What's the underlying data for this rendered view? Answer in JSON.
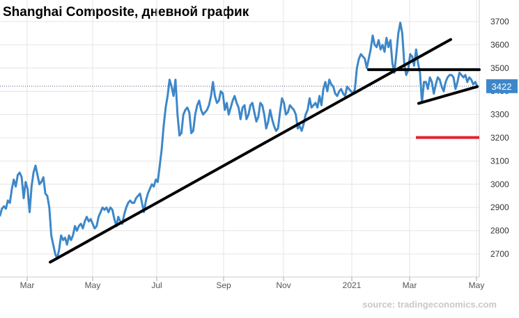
{
  "chart_data": {
    "type": "line",
    "title": "Shanghai Composite, дневной график",
    "source": "source: tradingeconomics.com",
    "ylim": [
      2600,
      3760
    ],
    "y_ticks": [
      2700,
      2800,
      2900,
      3000,
      3100,
      3200,
      3300,
      3400,
      3500,
      3600,
      3700
    ],
    "x_tick_labels": [
      "Mar",
      "May",
      "Jul",
      "Sep",
      "Nov",
      "2021",
      "Mar",
      "May"
    ],
    "last_value_label": "3422",
    "grid": true,
    "colors": {
      "series": "#3d87c9",
      "trendline": "#000000",
      "target_line": "#e3222b",
      "last_value_box": "#3d87c9"
    },
    "series": [
      {
        "values": [
          2865,
          2895,
          2905,
          2895,
          2930,
          2920,
          2980,
          3020,
          2990,
          3040,
          3050,
          3030,
          2940,
          3010,
          2980,
          2880,
          2990,
          3050,
          3080,
          3040,
          3000,
          3010,
          3030,
          2960,
          2950,
          2900,
          2780,
          2740,
          2700,
          2680,
          2720,
          2780,
          2760,
          2770,
          2740,
          2780,
          2760,
          2780,
          2820,
          2800,
          2820,
          2830,
          2810,
          2840,
          2860,
          2840,
          2850,
          2830,
          2810,
          2820,
          2860,
          2880,
          2900,
          2890,
          2900,
          2880,
          2900,
          2890,
          2850,
          2820,
          2860,
          2840,
          2830,
          2870,
          2900,
          2920,
          2930,
          2920,
          2920,
          2940,
          2950,
          2960,
          2920,
          2880,
          2930,
          2960,
          2980,
          3000,
          2990,
          3020,
          3010,
          3080,
          3150,
          3250,
          3330,
          3380,
          3450,
          3420,
          3380,
          3450,
          3300,
          3210,
          3220,
          3300,
          3320,
          3330,
          3310,
          3220,
          3230,
          3300,
          3340,
          3360,
          3320,
          3300,
          3310,
          3320,
          3340,
          3380,
          3440,
          3380,
          3350,
          3360,
          3400,
          3390,
          3320,
          3350,
          3300,
          3330,
          3360,
          3380,
          3350,
          3330,
          3280,
          3330,
          3340,
          3280,
          3300,
          3340,
          3350,
          3310,
          3270,
          3290,
          3350,
          3340,
          3300,
          3240,
          3270,
          3320,
          3280,
          3250,
          3230,
          3240,
          3310,
          3370,
          3350,
          3300,
          3310,
          3340,
          3330,
          3320,
          3300,
          3240,
          3250,
          3230,
          3260,
          3300,
          3320,
          3370,
          3330,
          3340,
          3350,
          3330,
          3380,
          3340,
          3410,
          3440,
          3400,
          3450,
          3430,
          3420,
          3390,
          3380,
          3400,
          3410,
          3390,
          3380,
          3420,
          3410,
          3400,
          3390,
          3410,
          3500,
          3540,
          3560,
          3550,
          3540,
          3500,
          3540,
          3580,
          3640,
          3600,
          3590,
          3620,
          3580,
          3600,
          3570,
          3630,
          3590,
          3620,
          3520,
          3480,
          3560,
          3650,
          3695,
          3650,
          3520,
          3470,
          3490,
          3560,
          3550,
          3510,
          3580,
          3520,
          3480,
          3350,
          3440,
          3440,
          3410,
          3460,
          3440,
          3390,
          3430,
          3460,
          3450,
          3420,
          3400,
          3440,
          3460,
          3470,
          3470,
          3460,
          3410,
          3440,
          3480,
          3470,
          3460,
          3470,
          3440,
          3460,
          3450,
          3430,
          3440,
          3422
        ]
      }
    ]
  }
}
